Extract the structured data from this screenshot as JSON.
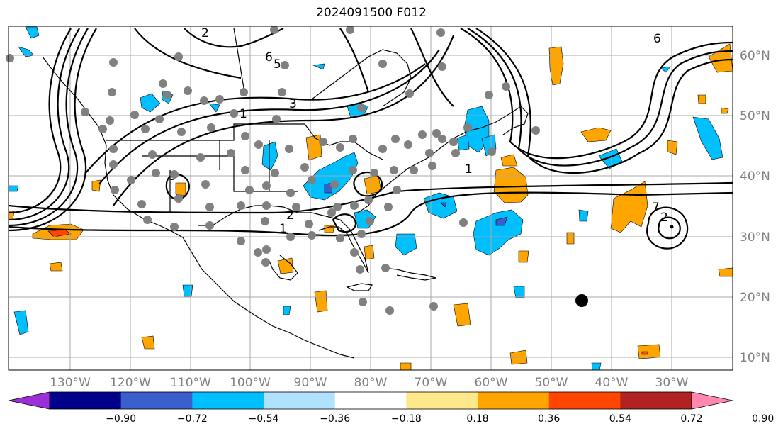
{
  "title": "2024091500 F012",
  "map": {
    "lon_labels": [
      "130°W",
      "120°W",
      "110°W",
      "100°W",
      "90°W",
      "80°W",
      "70°W",
      "60°W",
      "50°W",
      "40°W",
      "30°W"
    ],
    "lat_labels": [
      "60°N",
      "50°N",
      "40°N",
      "30°N",
      "20°N",
      "10°N"
    ],
    "contour_labels": [
      "6",
      "5",
      "6",
      "3",
      "1",
      "2",
      "1",
      "1",
      "3",
      "2",
      "7",
      "2"
    ],
    "grid_color": "#a9a9a9",
    "coastline_color": "#000000",
    "station_dot_color": "#808080"
  },
  "colorbar": {
    "tick_labels": [
      "−0.90",
      "−0.72",
      "−0.54",
      "−0.36",
      "−0.18",
      "0.18",
      "0.36",
      "0.54",
      "0.72",
      "0.90"
    ],
    "colors": [
      "#9b30d9",
      "#00008b",
      "#3a5fcd",
      "#00bfff",
      "#b0e2ff",
      "#ffffff",
      "#ffe88a",
      "#ffa500",
      "#ff4500",
      "#b22222",
      "#ff88b0"
    ]
  }
}
